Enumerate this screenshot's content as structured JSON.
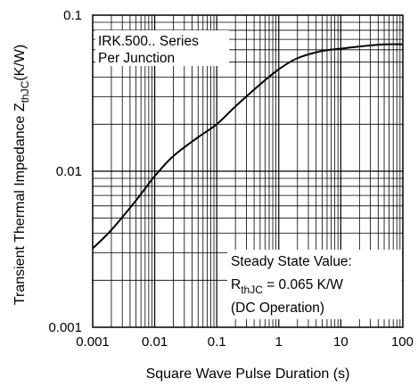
{
  "chart_data": {
    "type": "line",
    "x_scale": "log",
    "y_scale": "log",
    "xlim": [
      0.001,
      100
    ],
    "ylim": [
      0.001,
      0.1
    ],
    "grid": true,
    "xlabel": "Square Wave Pulse Duration (s)",
    "ylabel": {
      "main": "Transient Thermal Impedance Z",
      "subscript": "thJC",
      "unit": "(K/W)"
    },
    "x_ticks": [
      "0.001",
      "0.01",
      "0.1",
      "1",
      "10",
      "100"
    ],
    "y_ticks": [
      "0.001",
      "0.01",
      "0.1"
    ],
    "series": [
      {
        "x": [
          0.001,
          0.002,
          0.005,
          0.01,
          0.02,
          0.05,
          0.1,
          0.2,
          0.5,
          1,
          2,
          5,
          10,
          20,
          50,
          100
        ],
        "y": [
          0.0032,
          0.0042,
          0.0065,
          0.0093,
          0.0125,
          0.0165,
          0.02,
          0.026,
          0.036,
          0.045,
          0.053,
          0.059,
          0.061,
          0.063,
          0.065,
          0.065
        ]
      }
    ],
    "annotations": {
      "series_title": {
        "line1": "IRK.500.. Series",
        "line2": "Per Junction"
      },
      "steady_state": {
        "line1": "Steady State Value:",
        "line2_prefix": "R",
        "line2_sub": "thJC",
        "line2_suffix": " = 0.065 K/W",
        "line3": "(DC Operation)"
      }
    },
    "colors": {
      "line": "#000000",
      "grid": "#000000",
      "background": "#ffffff"
    }
  }
}
